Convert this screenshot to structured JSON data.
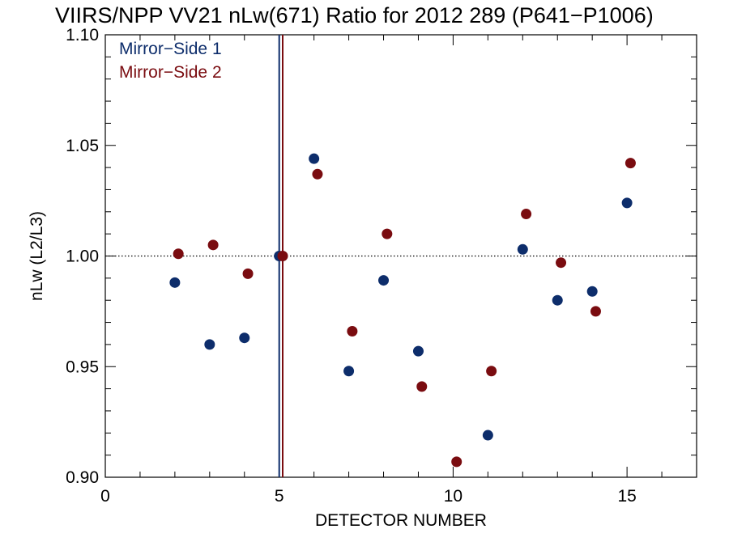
{
  "chart_data": {
    "type": "scatter",
    "title": "VIIRS/NPP VV21 nLw(671) Ratio for 2012 289 (P641−P1006)",
    "xlabel": "DETECTOR NUMBER",
    "ylabel": "nLw (L2/L3)",
    "xlim": [
      0,
      17
    ],
    "ylim": [
      0.9,
      1.1
    ],
    "x_ticks": [
      "0",
      "5",
      "10",
      "15"
    ],
    "y_ticks": [
      "0.90",
      "0.95",
      "1.00",
      "1.05",
      "1.10"
    ],
    "reference_line_y": 1.0,
    "legend_position": "top-left",
    "series": [
      {
        "name": "Mirror−Side 1",
        "color": "#0d2d6b",
        "x": [
          2,
          3,
          4,
          5,
          6,
          7,
          8,
          9,
          11,
          12,
          13,
          14,
          15
        ],
        "y": [
          0.988,
          0.96,
          0.963,
          1.0,
          1.044,
          0.948,
          0.989,
          0.957,
          0.919,
          1.003,
          0.98,
          0.984,
          1.024
        ],
        "vertical_line_x": 5
      },
      {
        "name": "Mirror−Side 2",
        "color": "#7a0c10",
        "x": [
          2.1,
          3.1,
          4.1,
          5.1,
          6.1,
          7.1,
          8.1,
          9.1,
          10.1,
          11.1,
          12.1,
          13.1,
          14.1,
          15.1
        ],
        "y": [
          1.001,
          1.005,
          0.992,
          1.0,
          1.037,
          0.966,
          1.01,
          0.941,
          0.907,
          0.948,
          1.019,
          0.997,
          0.975,
          1.042
        ],
        "vertical_line_x": 5.1
      }
    ]
  }
}
